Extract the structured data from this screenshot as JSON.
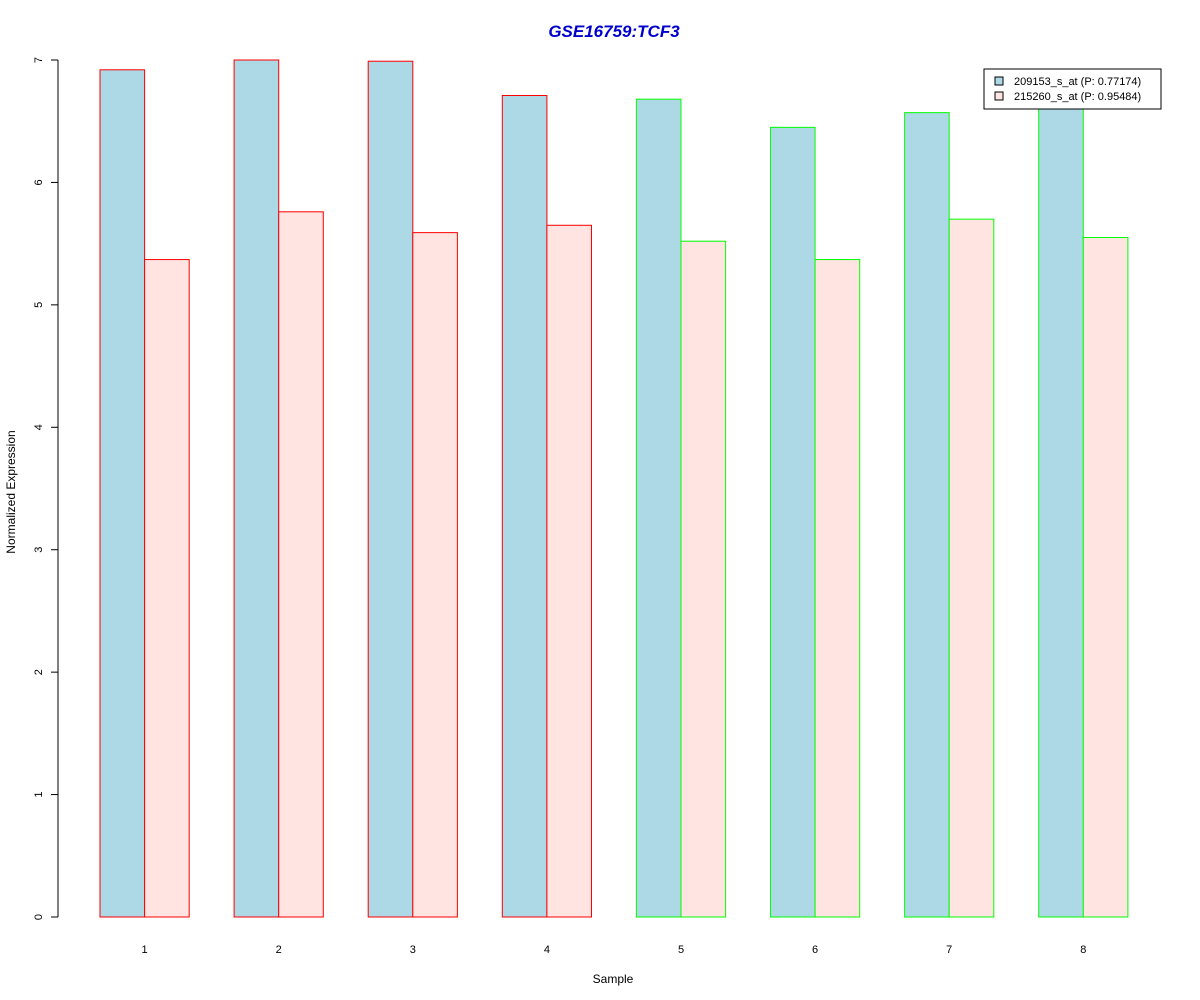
{
  "chart_data": {
    "type": "bar",
    "title": "GSE16759:TCF3",
    "title_color": "#0000CC",
    "xlabel": "Sample",
    "ylabel": "Normalized Expression",
    "categories": [
      "1",
      "2",
      "3",
      "4",
      "5",
      "6",
      "7",
      "8"
    ],
    "ylim": [
      0,
      7
    ],
    "y_ticks": [
      0,
      1,
      2,
      3,
      4,
      5,
      6,
      7
    ],
    "grid": false,
    "legend_position": "top-right",
    "series": [
      {
        "name": "209153_s_at (P: 0.77174)",
        "fill": "#ADD8E6",
        "values": [
          6.92,
          7.0,
          6.99,
          6.71,
          6.68,
          6.45,
          6.57,
          6.6
        ]
      },
      {
        "name": "215260_s_at (P: 0.95484)",
        "fill": "#FFE4E1",
        "values": [
          5.37,
          5.76,
          5.59,
          5.65,
          5.52,
          5.37,
          5.7,
          5.55
        ]
      }
    ],
    "group_border_colors": [
      "#FF0000",
      "#FF0000",
      "#FF0000",
      "#FF0000",
      "#00FF00",
      "#00FF00",
      "#00FF00",
      "#00FF00"
    ]
  }
}
